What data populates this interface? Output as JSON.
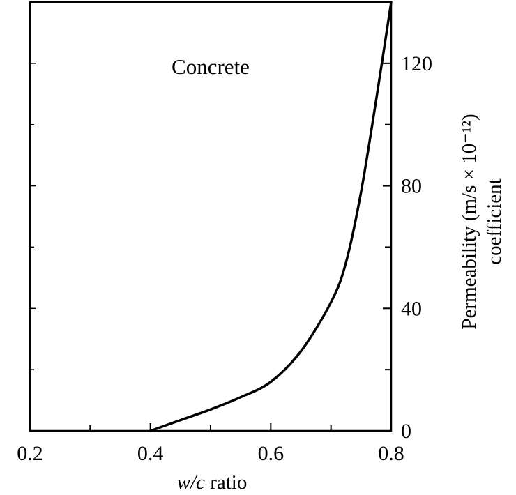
{
  "chart_data": {
    "type": "line",
    "title": "",
    "annotation": "Concrete",
    "xlabel_italic": "w/c",
    "xlabel_rest": " ratio",
    "ylabel_line1": "Permeability (m/s × 10⁻¹²)",
    "ylabel_line2": "coefficient",
    "xlim": [
      0.2,
      0.8
    ],
    "ylim": [
      0,
      140
    ],
    "x_ticks": [
      0.2,
      0.3,
      0.4,
      0.5,
      0.6,
      0.7,
      0.8
    ],
    "x_tick_labels": [
      "0.2",
      "",
      "0.4",
      "",
      "0.6",
      "",
      "0.8"
    ],
    "y_ticks": [
      0,
      20,
      40,
      60,
      80,
      100,
      120,
      140
    ],
    "y_tick_labels": [
      "0",
      "",
      "40",
      "",
      "80",
      "",
      "120",
      ""
    ],
    "y_axis_side": "right",
    "grid": false,
    "series": [
      {
        "x": [
          0.4,
          0.45,
          0.5,
          0.55,
          0.6,
          0.65,
          0.7,
          0.725,
          0.75,
          0.775,
          0.8
        ],
        "y": [
          0,
          3.5,
          7,
          11,
          16,
          26,
          42,
          55,
          78,
          108,
          140
        ]
      }
    ],
    "line_color": "#000000"
  }
}
